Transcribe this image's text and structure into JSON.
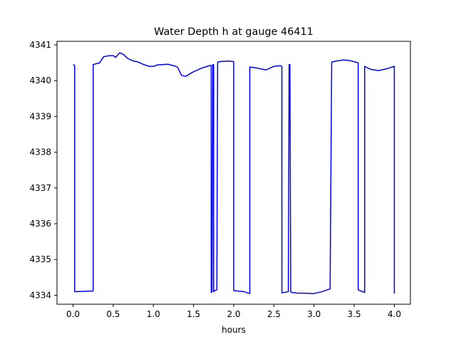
{
  "chart_data": {
    "type": "line",
    "title": "Water Depth h at gauge 46411",
    "xlabel": "hours",
    "ylabel": "",
    "xlim": [
      -0.2,
      4.2
    ],
    "ylim": [
      4333.75,
      4341.1
    ],
    "xticks": [
      0.0,
      0.5,
      1.0,
      1.5,
      2.0,
      2.5,
      3.0,
      3.5,
      4.0
    ],
    "xtick_labels": [
      "0.0",
      "0.5",
      "1.0",
      "1.5",
      "2.0",
      "2.5",
      "3.0",
      "3.5",
      "4.0"
    ],
    "yticks": [
      4334,
      4335,
      4336,
      4337,
      4338,
      4339,
      4340,
      4341
    ],
    "ytick_labels": [
      "4334",
      "4335",
      "4336",
      "4337",
      "4338",
      "4339",
      "4340",
      "4341"
    ],
    "grid": false,
    "series": [
      {
        "color": "#0000ff",
        "x": [
          0.0,
          0.02,
          0.02,
          0.25,
          0.25,
          0.33,
          0.38,
          0.45,
          0.5,
          0.53,
          0.58,
          0.63,
          0.68,
          0.75,
          0.8,
          0.88,
          0.95,
          1.0,
          1.05,
          1.12,
          1.18,
          1.25,
          1.3,
          1.35,
          1.4,
          1.5,
          1.6,
          1.7,
          1.72,
          1.72,
          1.73,
          1.74,
          1.75,
          1.75,
          1.77,
          1.79,
          1.8,
          1.8,
          1.85,
          1.95,
          2.0,
          2.0,
          2.13,
          2.2,
          2.2,
          2.25,
          2.4,
          2.5,
          2.58,
          2.6,
          2.6,
          2.68,
          2.69,
          2.7,
          2.71,
          2.72,
          2.8,
          2.88,
          3.0,
          3.1,
          3.2,
          3.22,
          3.22,
          3.28,
          3.37,
          3.45,
          3.55,
          3.55,
          3.63,
          3.63,
          3.7,
          3.8,
          3.9,
          4.0,
          4.0
        ],
        "y": [
          4340.45,
          4340.43,
          4334.1,
          4334.12,
          4340.45,
          4340.5,
          4340.67,
          4340.7,
          4340.7,
          4340.65,
          4340.78,
          4340.73,
          4340.62,
          4340.55,
          4340.53,
          4340.45,
          4340.4,
          4340.4,
          4340.44,
          4340.45,
          4340.46,
          4340.42,
          4340.38,
          4340.15,
          4340.12,
          4340.25,
          4340.35,
          4340.42,
          4340.43,
          4334.08,
          4334.1,
          4340.45,
          4340.45,
          4334.1,
          4334.14,
          4334.15,
          4340.5,
          4340.52,
          4340.54,
          4340.55,
          4340.53,
          4334.13,
          4334.1,
          4334.05,
          4340.38,
          4340.37,
          4340.3,
          4340.4,
          4340.42,
          4340.4,
          4334.07,
          4334.1,
          4340.45,
          4340.45,
          4334.1,
          4334.08,
          4334.06,
          4334.06,
          4334.05,
          4334.1,
          4334.18,
          4340.5,
          4340.52,
          4340.55,
          4340.58,
          4340.56,
          4340.5,
          4334.15,
          4334.08,
          4340.4,
          4340.32,
          4340.28,
          4340.33,
          4340.4,
          4334.05
        ]
      }
    ]
  }
}
